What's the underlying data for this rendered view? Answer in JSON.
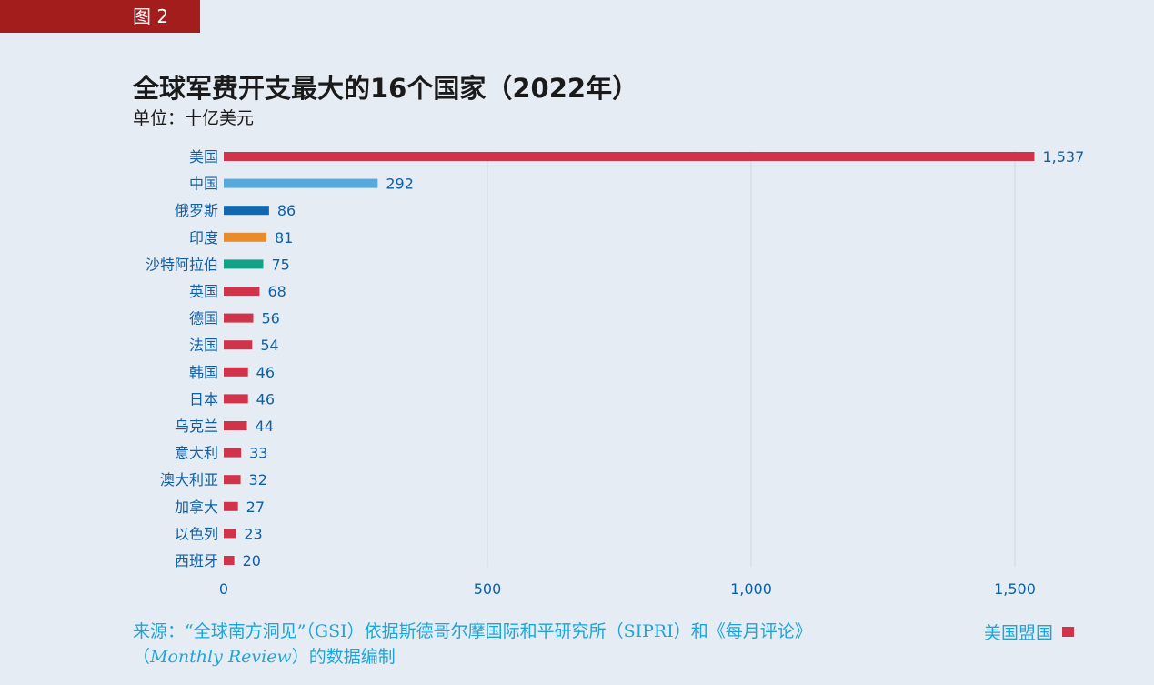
{
  "figure_label": "图 2",
  "source": {
    "line1": "来源：“全球南方洞见”（GSI）依据斯德哥尔摩国际和平研究所（SIPRI）和《每月评论》",
    "line2_open": "（",
    "line2_italic": "Monthly Review",
    "line2_rest": "）的数据编制"
  },
  "legend": {
    "label": "美国盟国",
    "color": "#d0334a"
  },
  "chart_data": {
    "type": "bar",
    "orientation": "horizontal",
    "title": "全球军费开支最大的16个国家（2022年）",
    "subtitle": "单位：十亿美元",
    "xlabel": "",
    "ylabel": "",
    "xlim": [
      0,
      1600
    ],
    "xticks": [
      0,
      500,
      1000,
      1500
    ],
    "xtick_labels": [
      "0",
      "500",
      "1,000",
      "1,500"
    ],
    "grid": true,
    "categories": [
      "美国",
      "中国",
      "俄罗斯",
      "印度",
      "沙特阿拉伯",
      "英国",
      "德国",
      "法国",
      "韩国",
      "日本",
      "乌克兰",
      "意大利",
      "澳大利亚",
      "加拿大",
      "以色列",
      "西班牙"
    ],
    "values": [
      1537,
      292,
      86,
      81,
      75,
      68,
      56,
      54,
      46,
      46,
      44,
      33,
      32,
      27,
      23,
      20
    ],
    "value_labels": [
      "1,537",
      "292",
      "86",
      "81",
      "75",
      "68",
      "56",
      "54",
      "46",
      "46",
      "44",
      "33",
      "32",
      "27",
      "23",
      "20"
    ],
    "colors": [
      "#d0334a",
      "#56a9dd",
      "#0f68b0",
      "#e88b2d",
      "#12a287",
      "#d0334a",
      "#d0334a",
      "#d0334a",
      "#d0334a",
      "#d0334a",
      "#d0334a",
      "#d0334a",
      "#d0334a",
      "#d0334a",
      "#d0334a",
      "#d0334a"
    ]
  }
}
